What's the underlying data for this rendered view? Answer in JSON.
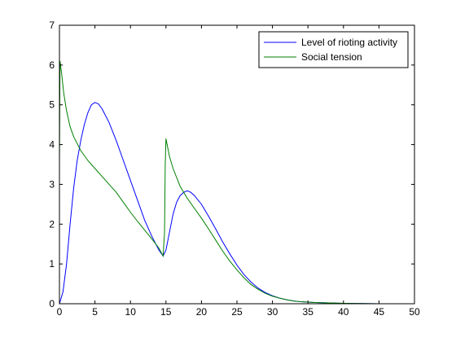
{
  "chart_data": {
    "type": "line",
    "xlim": [
      0,
      50
    ],
    "ylim": [
      0,
      7
    ],
    "xticks": [
      0,
      5,
      10,
      15,
      20,
      25,
      30,
      35,
      40,
      45,
      50
    ],
    "yticks": [
      0,
      1,
      2,
      3,
      4,
      5,
      6,
      7
    ],
    "grid": false,
    "legend_position": "top-right",
    "series": [
      {
        "name": "Level of rioting activity",
        "color": "#0000ff",
        "points": [
          [
            0,
            0
          ],
          [
            0.5,
            0.3
          ],
          [
            1,
            1.0
          ],
          [
            1.5,
            2.0
          ],
          [
            2,
            2.9
          ],
          [
            2.5,
            3.6
          ],
          [
            3,
            4.1
          ],
          [
            3.5,
            4.5
          ],
          [
            4,
            4.8
          ],
          [
            4.5,
            5.0
          ],
          [
            5,
            5.06
          ],
          [
            5.5,
            5.02
          ],
          [
            6,
            4.9
          ],
          [
            7,
            4.55
          ],
          [
            8,
            4.1
          ],
          [
            9,
            3.6
          ],
          [
            10,
            3.1
          ],
          [
            11,
            2.6
          ],
          [
            12,
            2.1
          ],
          [
            13,
            1.7
          ],
          [
            14,
            1.35
          ],
          [
            14.6,
            1.2
          ],
          [
            15,
            1.35
          ],
          [
            15.5,
            1.8
          ],
          [
            16,
            2.25
          ],
          [
            16.5,
            2.55
          ],
          [
            17,
            2.72
          ],
          [
            17.5,
            2.8
          ],
          [
            18,
            2.84
          ],
          [
            18.5,
            2.8
          ],
          [
            19,
            2.72
          ],
          [
            20,
            2.5
          ],
          [
            21,
            2.2
          ],
          [
            22,
            1.88
          ],
          [
            23,
            1.55
          ],
          [
            24,
            1.25
          ],
          [
            25,
            0.97
          ],
          [
            26,
            0.73
          ],
          [
            27,
            0.54
          ],
          [
            28,
            0.39
          ],
          [
            29,
            0.28
          ],
          [
            30,
            0.2
          ],
          [
            31,
            0.14
          ],
          [
            32,
            0.1
          ],
          [
            33,
            0.07
          ],
          [
            34,
            0.05
          ],
          [
            35,
            0.04
          ],
          [
            36,
            0.03
          ],
          [
            38,
            0.02
          ],
          [
            40,
            0.01
          ],
          [
            45,
            0.0
          ],
          [
            50,
            0.0
          ]
        ]
      },
      {
        "name": "Social tension",
        "color": "#008000",
        "points": [
          [
            0,
            3.5
          ],
          [
            0.08,
            6.1
          ],
          [
            0.3,
            5.8
          ],
          [
            0.6,
            5.3
          ],
          [
            1,
            4.85
          ],
          [
            1.5,
            4.45
          ],
          [
            2,
            4.2
          ],
          [
            3,
            3.85
          ],
          [
            4,
            3.6
          ],
          [
            5,
            3.4
          ],
          [
            6,
            3.2
          ],
          [
            7,
            3.0
          ],
          [
            8,
            2.8
          ],
          [
            9,
            2.55
          ],
          [
            10,
            2.3
          ],
          [
            11,
            2.07
          ],
          [
            12,
            1.85
          ],
          [
            13,
            1.63
          ],
          [
            14,
            1.4
          ],
          [
            14.6,
            1.2
          ],
          [
            14.8,
            1.8
          ],
          [
            14.9,
            3.5
          ],
          [
            15,
            4.15
          ],
          [
            15.5,
            3.7
          ],
          [
            16,
            3.4
          ],
          [
            17,
            2.95
          ],
          [
            18,
            2.65
          ],
          [
            19,
            2.4
          ],
          [
            20,
            2.15
          ],
          [
            21,
            1.88
          ],
          [
            22,
            1.6
          ],
          [
            23,
            1.32
          ],
          [
            24,
            1.07
          ],
          [
            25,
            0.85
          ],
          [
            26,
            0.65
          ],
          [
            27,
            0.48
          ],
          [
            28,
            0.36
          ],
          [
            29,
            0.26
          ],
          [
            30,
            0.19
          ],
          [
            31,
            0.14
          ],
          [
            32,
            0.1
          ],
          [
            33,
            0.07
          ],
          [
            34,
            0.05
          ],
          [
            35,
            0.04
          ],
          [
            36,
            0.03
          ],
          [
            38,
            0.02
          ],
          [
            40,
            0.01
          ],
          [
            45,
            0.0
          ],
          [
            50,
            0.0
          ]
        ]
      }
    ]
  }
}
